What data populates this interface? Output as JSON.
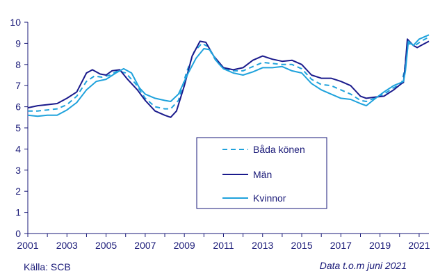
{
  "chart_data": {
    "type": "line",
    "title": "",
    "xlabel": "",
    "ylabel": "",
    "xlim": [
      2001,
      2021.5
    ],
    "ylim": [
      0,
      10
    ],
    "y_ticks": [
      0,
      1,
      2,
      3,
      4,
      5,
      6,
      7,
      8,
      9,
      10
    ],
    "x_ticks": [
      2001,
      2002,
      2003,
      2004,
      2005,
      2006,
      2007,
      2008,
      2009,
      2010,
      2011,
      2012,
      2013,
      2014,
      2015,
      2016,
      2017,
      2018,
      2019,
      2020,
      2021
    ],
    "x_tick_labels": [
      "2001",
      "2003",
      "2005",
      "2007",
      "2009",
      "2011",
      "2013",
      "2015",
      "2017",
      "2019",
      "2021"
    ],
    "grid": false,
    "legend_position": "center-right",
    "series": [
      {
        "name": "Båda könen",
        "color": "#1fa2dc",
        "dash": "dashed",
        "points": [
          [
            2001,
            5.8
          ],
          [
            2001.5,
            5.8
          ],
          [
            2002,
            5.85
          ],
          [
            2002.5,
            5.9
          ],
          [
            2003,
            6.1
          ],
          [
            2003.5,
            6.5
          ],
          [
            2004,
            7.2
          ],
          [
            2004.4,
            7.45
          ],
          [
            2004.8,
            7.4
          ],
          [
            2005.2,
            7.5
          ],
          [
            2005.6,
            7.7
          ],
          [
            2006,
            7.6
          ],
          [
            2006.5,
            7.1
          ],
          [
            2007,
            6.4
          ],
          [
            2007.5,
            6.0
          ],
          [
            2008,
            5.9
          ],
          [
            2008.3,
            5.9
          ],
          [
            2008.7,
            6.3
          ],
          [
            2009.1,
            7.6
          ],
          [
            2009.5,
            8.6
          ],
          [
            2009.9,
            9.0
          ],
          [
            2010.2,
            8.85
          ],
          [
            2010.6,
            8.2
          ],
          [
            2011,
            7.8
          ],
          [
            2011.5,
            7.7
          ],
          [
            2012,
            7.7
          ],
          [
            2012.5,
            7.9
          ],
          [
            2013,
            8.1
          ],
          [
            2013.5,
            8.05
          ],
          [
            2014,
            8.0
          ],
          [
            2014.5,
            8.0
          ],
          [
            2015,
            7.8
          ],
          [
            2015.5,
            7.3
          ],
          [
            2016,
            7.05
          ],
          [
            2016.5,
            7.0
          ],
          [
            2017,
            6.8
          ],
          [
            2017.5,
            6.6
          ],
          [
            2018,
            6.3
          ],
          [
            2018.3,
            6.25
          ],
          [
            2018.7,
            6.4
          ],
          [
            2019.2,
            6.6
          ],
          [
            2019.7,
            6.9
          ],
          [
            2020.1,
            7.1
          ],
          [
            2020.25,
            7.7
          ],
          [
            2020.35,
            8.6
          ],
          [
            2020.5,
            9.0
          ],
          [
            2020.8,
            8.9
          ],
          [
            2021.1,
            9.1
          ],
          [
            2021.5,
            9.3
          ]
        ]
      },
      {
        "name": "Män",
        "color": "#1a1a8c",
        "dash": "solid",
        "points": [
          [
            2001,
            5.95
          ],
          [
            2001.5,
            6.05
          ],
          [
            2002,
            6.1
          ],
          [
            2002.5,
            6.15
          ],
          [
            2003,
            6.4
          ],
          [
            2003.5,
            6.7
          ],
          [
            2004,
            7.6
          ],
          [
            2004.3,
            7.75
          ],
          [
            2004.7,
            7.55
          ],
          [
            2005,
            7.5
          ],
          [
            2005.3,
            7.7
          ],
          [
            2005.7,
            7.75
          ],
          [
            2006.1,
            7.3
          ],
          [
            2006.6,
            6.8
          ],
          [
            2007,
            6.3
          ],
          [
            2007.5,
            5.8
          ],
          [
            2008,
            5.6
          ],
          [
            2008.3,
            5.5
          ],
          [
            2008.6,
            5.8
          ],
          [
            2009,
            7.0
          ],
          [
            2009.4,
            8.4
          ],
          [
            2009.8,
            9.1
          ],
          [
            2010.1,
            9.05
          ],
          [
            2010.5,
            8.4
          ],
          [
            2011,
            7.85
          ],
          [
            2011.5,
            7.75
          ],
          [
            2012,
            7.85
          ],
          [
            2012.5,
            8.2
          ],
          [
            2013,
            8.4
          ],
          [
            2013.5,
            8.25
          ],
          [
            2014,
            8.15
          ],
          [
            2014.5,
            8.2
          ],
          [
            2015,
            8.0
          ],
          [
            2015.5,
            7.5
          ],
          [
            2016,
            7.35
          ],
          [
            2016.5,
            7.35
          ],
          [
            2017,
            7.2
          ],
          [
            2017.5,
            7.0
          ],
          [
            2018,
            6.5
          ],
          [
            2018.3,
            6.4
          ],
          [
            2018.7,
            6.45
          ],
          [
            2019.2,
            6.5
          ],
          [
            2019.7,
            6.8
          ],
          [
            2020.1,
            7.1
          ],
          [
            2020.2,
            7.15
          ],
          [
            2020.3,
            8.05
          ],
          [
            2020.4,
            9.2
          ],
          [
            2020.7,
            8.9
          ],
          [
            2020.9,
            8.8
          ],
          [
            2021.1,
            8.9
          ],
          [
            2021.5,
            9.1
          ]
        ]
      },
      {
        "name": "Kvinnor",
        "color": "#1fa2dc",
        "dash": "solid",
        "points": [
          [
            2001,
            5.6
          ],
          [
            2001.5,
            5.55
          ],
          [
            2002,
            5.6
          ],
          [
            2002.5,
            5.6
          ],
          [
            2003,
            5.85
          ],
          [
            2003.5,
            6.2
          ],
          [
            2004,
            6.8
          ],
          [
            2004.5,
            7.2
          ],
          [
            2005,
            7.3
          ],
          [
            2005.5,
            7.6
          ],
          [
            2005.9,
            7.8
          ],
          [
            2006.3,
            7.6
          ],
          [
            2006.7,
            6.9
          ],
          [
            2007,
            6.6
          ],
          [
            2007.5,
            6.4
          ],
          [
            2008,
            6.3
          ],
          [
            2008.3,
            6.25
          ],
          [
            2008.7,
            6.6
          ],
          [
            2009.2,
            7.6
          ],
          [
            2009.6,
            8.3
          ],
          [
            2010,
            8.75
          ],
          [
            2010.3,
            8.7
          ],
          [
            2010.7,
            8.1
          ],
          [
            2011,
            7.8
          ],
          [
            2011.5,
            7.6
          ],
          [
            2012,
            7.5
          ],
          [
            2012.5,
            7.65
          ],
          [
            2013,
            7.85
          ],
          [
            2013.5,
            7.85
          ],
          [
            2014,
            7.9
          ],
          [
            2014.5,
            7.7
          ],
          [
            2015,
            7.6
          ],
          [
            2015.5,
            7.1
          ],
          [
            2016,
            6.8
          ],
          [
            2016.5,
            6.6
          ],
          [
            2017,
            6.4
          ],
          [
            2017.5,
            6.35
          ],
          [
            2018,
            6.15
          ],
          [
            2018.3,
            6.05
          ],
          [
            2018.7,
            6.35
          ],
          [
            2019.2,
            6.7
          ],
          [
            2019.7,
            7.0
          ],
          [
            2020.1,
            7.15
          ],
          [
            2020.2,
            7.2
          ],
          [
            2020.3,
            7.7
          ],
          [
            2020.45,
            9.1
          ],
          [
            2020.7,
            8.9
          ],
          [
            2021,
            9.2
          ],
          [
            2021.5,
            9.4
          ]
        ]
      }
    ]
  },
  "footer": {
    "source": "Källa: SCB",
    "note": "Data t.o.m juni 2021"
  }
}
